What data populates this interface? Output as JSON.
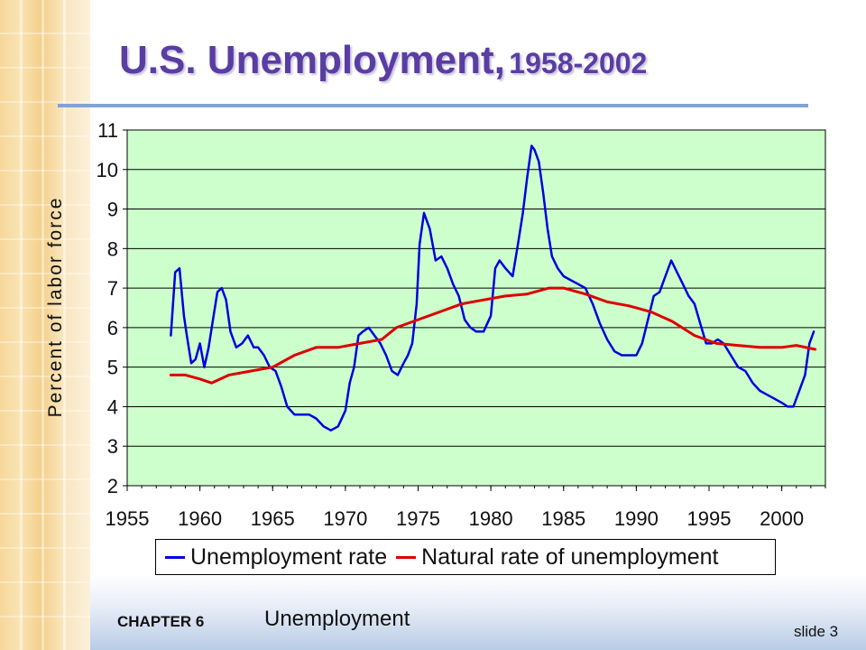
{
  "slide": {
    "title_main": "U.S. Unemployment,",
    "title_years": "1958-2002",
    "chapter": "CHAPTER 6",
    "topic": "Unemployment",
    "slide_number": "slide 3"
  },
  "colors": {
    "title": "#5a3da3",
    "plot_background": "#ccffcc",
    "unemployment_rate": "#0000dd",
    "natural_rate": "#dd0000"
  },
  "chart_data": {
    "type": "line",
    "title": "",
    "xlabel": "",
    "ylabel": "Percent of labor force",
    "xlim": [
      1955,
      2003
    ],
    "ylim": [
      2,
      11
    ],
    "xticks": [
      "1955",
      "1960",
      "1965",
      "1970",
      "1975",
      "1980",
      "1985",
      "1990",
      "1995",
      "2000"
    ],
    "yticks": [
      "2",
      "3",
      "4",
      "5",
      "6",
      "7",
      "8",
      "9",
      "10",
      "11"
    ],
    "grid": "horizontal",
    "legend_position": "bottom",
    "series": [
      {
        "name": "Unemployment rate",
        "x": [
          1958.0,
          1958.3,
          1958.6,
          1958.9,
          1959.1,
          1959.4,
          1959.7,
          1960.0,
          1960.3,
          1960.6,
          1960.9,
          1961.2,
          1961.5,
          1961.8,
          1962.1,
          1962.5,
          1962.9,
          1963.3,
          1963.7,
          1964.0,
          1964.4,
          1964.8,
          1965.2,
          1965.6,
          1966.0,
          1966.5,
          1967.0,
          1967.5,
          1968.0,
          1968.5,
          1969.0,
          1969.5,
          1970.0,
          1970.3,
          1970.6,
          1970.9,
          1971.2,
          1971.6,
          1972.0,
          1972.4,
          1972.8,
          1973.2,
          1973.6,
          1974.0,
          1974.3,
          1974.6,
          1974.9,
          1975.1,
          1975.4,
          1975.8,
          1976.2,
          1976.6,
          1977.0,
          1977.4,
          1977.8,
          1978.2,
          1978.6,
          1979.0,
          1979.5,
          1980.0,
          1980.3,
          1980.6,
          1981.0,
          1981.5,
          1981.9,
          1982.2,
          1982.5,
          1982.8,
          1983.0,
          1983.3,
          1983.6,
          1983.9,
          1984.2,
          1984.6,
          1985.0,
          1985.5,
          1986.0,
          1986.5,
          1987.0,
          1987.5,
          1988.0,
          1988.5,
          1989.0,
          1989.5,
          1990.0,
          1990.4,
          1990.8,
          1991.2,
          1991.6,
          1992.0,
          1992.4,
          1992.8,
          1993.2,
          1993.6,
          1994.0,
          1994.4,
          1994.8,
          1995.2,
          1995.6,
          1996.0,
          1996.5,
          1997.0,
          1997.5,
          1998.0,
          1998.5,
          1999.0,
          1999.5,
          2000.0,
          2000.4,
          2000.8,
          2001.2,
          2001.6,
          2001.9,
          2002.2
        ],
        "y": [
          5.8,
          7.4,
          7.5,
          6.3,
          5.8,
          5.1,
          5.2,
          5.6,
          5.0,
          5.5,
          6.2,
          6.9,
          7.0,
          6.7,
          5.9,
          5.5,
          5.6,
          5.8,
          5.5,
          5.5,
          5.3,
          5.0,
          4.9,
          4.5,
          4.0,
          3.8,
          3.8,
          3.8,
          3.7,
          3.5,
          3.4,
          3.5,
          3.9,
          4.6,
          5.0,
          5.8,
          5.9,
          6.0,
          5.8,
          5.6,
          5.3,
          4.9,
          4.8,
          5.1,
          5.3,
          5.6,
          6.6,
          8.1,
          8.9,
          8.5,
          7.7,
          7.8,
          7.5,
          7.1,
          6.8,
          6.2,
          6.0,
          5.9,
          5.9,
          6.3,
          7.5,
          7.7,
          7.5,
          7.3,
          8.2,
          8.9,
          9.8,
          10.6,
          10.5,
          10.2,
          9.4,
          8.5,
          7.8,
          7.5,
          7.3,
          7.2,
          7.1,
          7.0,
          6.6,
          6.1,
          5.7,
          5.4,
          5.3,
          5.3,
          5.3,
          5.6,
          6.2,
          6.8,
          6.9,
          7.3,
          7.7,
          7.4,
          7.1,
          6.8,
          6.6,
          6.1,
          5.6,
          5.6,
          5.7,
          5.6,
          5.3,
          5.0,
          4.9,
          4.6,
          4.4,
          4.3,
          4.2,
          4.1,
          4.0,
          4.0,
          4.4,
          4.8,
          5.6,
          5.9
        ]
      },
      {
        "name": "Natural rate of unemployment",
        "x": [
          1958.0,
          1959.0,
          1960.0,
          1960.8,
          1962.0,
          1963.5,
          1965.0,
          1966.5,
          1968.0,
          1969.5,
          1971.0,
          1972.5,
          1973.5,
          1975.0,
          1976.5,
          1978.0,
          1979.5,
          1981.0,
          1982.5,
          1984.0,
          1985.0,
          1986.5,
          1988.0,
          1989.5,
          1991.0,
          1992.5,
          1994.0,
          1995.5,
          1997.0,
          1998.5,
          2000.0,
          2001.0,
          2002.3
        ],
        "y": [
          4.8,
          4.8,
          4.7,
          4.6,
          4.8,
          4.9,
          5.0,
          5.3,
          5.5,
          5.5,
          5.6,
          5.7,
          6.0,
          6.2,
          6.4,
          6.6,
          6.7,
          6.8,
          6.85,
          7.0,
          7.0,
          6.85,
          6.65,
          6.55,
          6.4,
          6.15,
          5.8,
          5.6,
          5.55,
          5.5,
          5.5,
          5.55,
          5.45
        ]
      }
    ]
  }
}
